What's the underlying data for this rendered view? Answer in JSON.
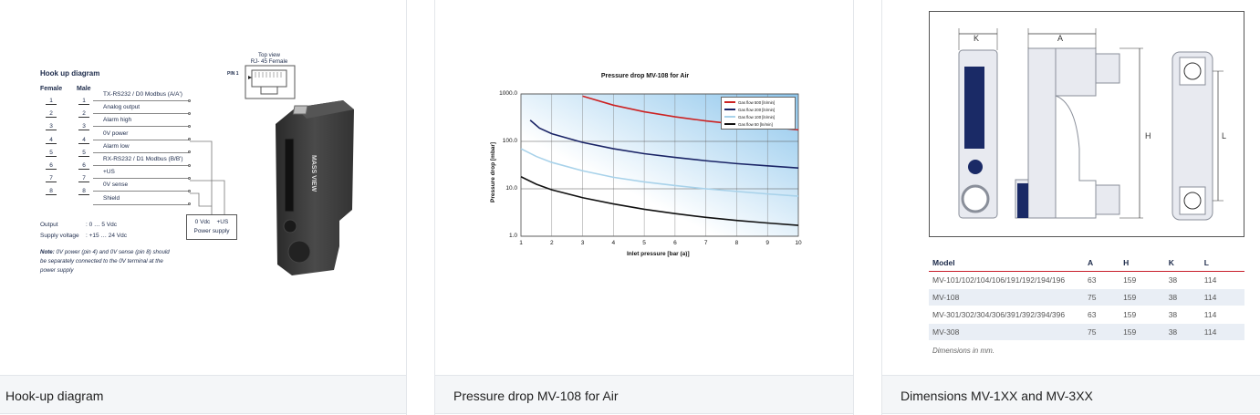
{
  "cards": [
    {
      "caption": "Hook-up diagram"
    },
    {
      "caption": "Pressure drop MV-108 for Air"
    },
    {
      "caption": "Dimensions MV-1XX and MV-3XX"
    }
  ],
  "hookup": {
    "title": "Hook up diagram",
    "female_label": "Female",
    "male_label": "Male",
    "female_pins": [
      "1",
      "2",
      "3",
      "4",
      "5",
      "6",
      "7",
      "8"
    ],
    "male_pins": [
      "1",
      "2",
      "3",
      "4",
      "5",
      "6",
      "7",
      "8"
    ],
    "signals": [
      "TX-RS232 / D0 Modbus (A/A')",
      "Analog output",
      "Alarm high",
      "0V power",
      "Alarm low",
      "RX-RS232 / D1 Modbus (B/B')",
      "+US",
      "0V sense",
      "Shield"
    ],
    "output_label": "Output",
    "output_value": ": 0 … 5 Vdc",
    "supply_label": "Supply voltage",
    "supply_value": ": +15 … 24 Vdc",
    "note_bold": "Note:",
    "note_text": " 0V power (pin 4) and 0V sense (pin 8) should be separately connected to the 0V terminal at the power supply",
    "ps_line1": "0 Vdc    +US",
    "ps_line2": "Power supply",
    "topview_line1": "Top view",
    "topview_line2": "RJ- 45 Female",
    "pin1_label": "PIN 1",
    "device_brand": "Bronkhorst",
    "device_name": "MASS VIEW"
  },
  "chart_data": {
    "type": "line",
    "title": "Pressure drop MV-108 for Air",
    "xlabel": "Inlet pressure [bar (a)]",
    "ylabel": "Pressure drop [mbar]",
    "x_ticks": [
      "1",
      "2",
      "3",
      "4",
      "5",
      "6",
      "7",
      "8",
      "9",
      "10"
    ],
    "y_ticks": [
      "1000.0",
      "100.0",
      "10.0",
      "1.0"
    ],
    "xlim": [
      1,
      10
    ],
    "ylim": [
      1,
      1000
    ],
    "y_scale": "log",
    "grid": true,
    "legend_position": "top-right",
    "series": [
      {
        "name": "Gas flow 50  [ln/min]",
        "color": "#111111",
        "x": [
          1,
          1.5,
          2,
          3,
          4,
          5,
          6,
          7,
          8,
          9,
          10
        ],
        "y": [
          18,
          12.5,
          9.5,
          6.5,
          4.8,
          3.7,
          3.0,
          2.5,
          2.15,
          1.9,
          1.7
        ]
      },
      {
        "name": "Gas flow 100  [ln/min]",
        "color": "#a8d2ea",
        "x": [
          1,
          1.5,
          2,
          3,
          4,
          5,
          6,
          7,
          8,
          9,
          10
        ],
        "y": [
          70,
          48,
          36,
          24,
          17.5,
          14,
          11.7,
          10.0,
          8.8,
          7.8,
          7.0
        ]
      },
      {
        "name": "Gas flow 200  [ln/min]",
        "color": "#1a2466",
        "x": [
          1.3,
          1.6,
          2,
          3,
          4,
          5,
          6,
          7,
          8,
          9,
          10
        ],
        "y": [
          280,
          190,
          145,
          95,
          70,
          55,
          46,
          39,
          34,
          30.5,
          27.5
        ]
      },
      {
        "name": "Gas flow 500  [ln/min]",
        "color": "#cc2222",
        "x": [
          3,
          4,
          5,
          6,
          7,
          8,
          9,
          10
        ],
        "y": [
          900,
          580,
          420,
          330,
          270,
          230,
          200,
          175
        ]
      }
    ]
  },
  "dimensions": {
    "labels": {
      "k": "K",
      "a": "A",
      "h": "H",
      "l": "L"
    },
    "headers": [
      "Model",
      "A",
      "H",
      "K",
      "L"
    ],
    "rows": [
      [
        "MV-101/102/104/106/191/192/194/196",
        "63",
        "159",
        "38",
        "114"
      ],
      [
        "MV-108",
        "75",
        "159",
        "38",
        "114"
      ],
      [
        "MV-301/302/304/306/391/392/394/396",
        "63",
        "159",
        "38",
        "114"
      ],
      [
        "MV-308",
        "75",
        "159",
        "38",
        "114"
      ]
    ],
    "note": "Dimensions in mm."
  }
}
